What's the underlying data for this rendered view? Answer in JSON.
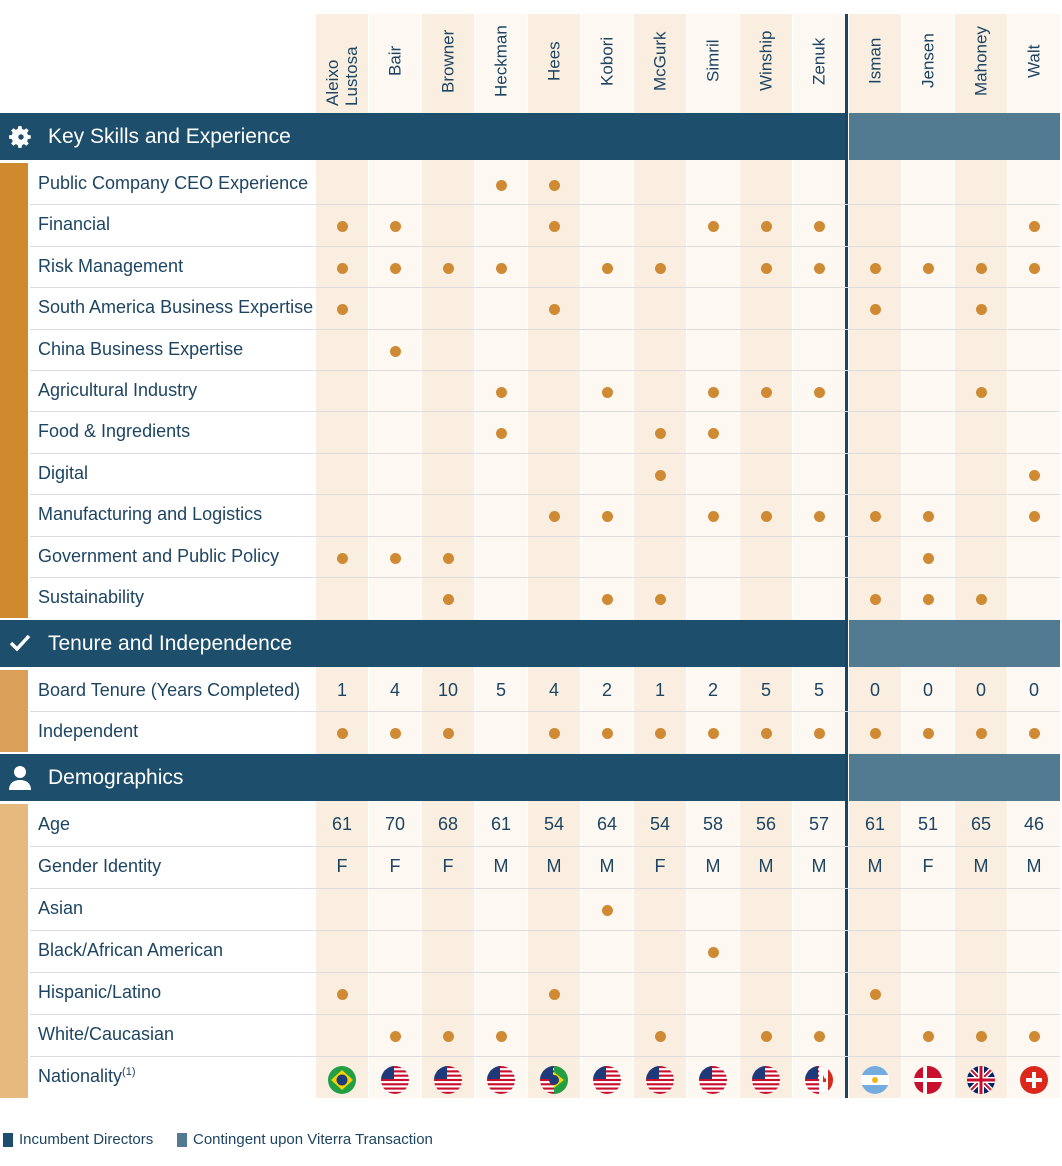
{
  "directors": [
    "Aleixo Lustosa",
    "Bair",
    "Browner",
    "Heckman",
    "Hees",
    "Kobori",
    "McGurk",
    "Simril",
    "Winship",
    "Zenuk",
    "Isman",
    "Jensen",
    "Mahoney",
    "Walt"
  ],
  "sections": [
    {
      "title": "Key Skills and Experience",
      "rows": [
        {
          "label": "Public Company CEO Experience",
          "cells": [
            false,
            false,
            false,
            true,
            true,
            false,
            false,
            false,
            false,
            false,
            false,
            false,
            false,
            false
          ]
        },
        {
          "label": "Financial",
          "cells": [
            true,
            true,
            false,
            false,
            true,
            false,
            false,
            true,
            true,
            true,
            false,
            false,
            false,
            true
          ]
        },
        {
          "label": "Risk Management",
          "cells": [
            true,
            true,
            true,
            true,
            false,
            true,
            true,
            false,
            true,
            true,
            true,
            true,
            true,
            true
          ]
        },
        {
          "label": "South America Business Expertise",
          "cells": [
            true,
            false,
            false,
            false,
            true,
            false,
            false,
            false,
            false,
            false,
            true,
            false,
            true,
            false
          ]
        },
        {
          "label": "China Business Expertise",
          "cells": [
            false,
            true,
            false,
            false,
            false,
            false,
            false,
            false,
            false,
            false,
            false,
            false,
            false,
            false
          ]
        },
        {
          "label": "Agricultural Industry",
          "cells": [
            false,
            false,
            false,
            true,
            false,
            true,
            false,
            true,
            true,
            true,
            false,
            false,
            true,
            false
          ]
        },
        {
          "label": "Food & Ingredients",
          "cells": [
            false,
            false,
            false,
            true,
            false,
            false,
            true,
            true,
            false,
            false,
            false,
            false,
            false,
            false
          ]
        },
        {
          "label": "Digital",
          "cells": [
            false,
            false,
            false,
            false,
            false,
            false,
            true,
            false,
            false,
            false,
            false,
            false,
            false,
            true
          ]
        },
        {
          "label": "Manufacturing and Logistics",
          "cells": [
            false,
            false,
            false,
            false,
            true,
            true,
            false,
            true,
            true,
            true,
            true,
            true,
            false,
            true
          ]
        },
        {
          "label": "Government and Public Policy",
          "cells": [
            true,
            true,
            true,
            false,
            false,
            false,
            false,
            false,
            false,
            false,
            false,
            true,
            false,
            false
          ]
        },
        {
          "label": "Sustainability",
          "cells": [
            false,
            false,
            true,
            false,
            false,
            true,
            true,
            false,
            false,
            false,
            true,
            true,
            true,
            false
          ]
        }
      ]
    },
    {
      "title": "Tenure and Independence",
      "rows": [
        {
          "label": "Board Tenure (Years Completed)",
          "cells": [
            1,
            4,
            10,
            5,
            4,
            2,
            1,
            2,
            5,
            5,
            0,
            0,
            0,
            0
          ]
        },
        {
          "label": "Independent",
          "cells": [
            true,
            true,
            true,
            false,
            true,
            true,
            true,
            true,
            true,
            true,
            true,
            true,
            true,
            true
          ]
        }
      ]
    },
    {
      "title": "Demographics",
      "rows": [
        {
          "label": "Age",
          "cells": [
            61,
            70,
            68,
            61,
            54,
            64,
            54,
            58,
            56,
            57,
            61,
            51,
            65,
            46
          ]
        },
        {
          "label": "Gender Identity",
          "cells": [
            "F",
            "F",
            "F",
            "M",
            "M",
            "M",
            "F",
            "M",
            "M",
            "M",
            "M",
            "F",
            "M",
            "M"
          ]
        },
        {
          "label": "Asian",
          "cells": [
            false,
            false,
            false,
            false,
            false,
            true,
            false,
            false,
            false,
            false,
            false,
            false,
            false,
            false
          ]
        },
        {
          "label": "Black/African American",
          "cells": [
            false,
            false,
            false,
            false,
            false,
            false,
            false,
            true,
            false,
            false,
            false,
            false,
            false,
            false
          ]
        },
        {
          "label": "Hispanic/Latino",
          "cells": [
            true,
            false,
            false,
            false,
            true,
            false,
            false,
            false,
            false,
            false,
            true,
            false,
            false,
            false
          ]
        },
        {
          "label": "White/Caucasian",
          "cells": [
            false,
            true,
            true,
            true,
            false,
            false,
            true,
            false,
            true,
            true,
            false,
            true,
            true,
            true
          ]
        },
        {
          "label": "Nationality",
          "note": "(1)"
        }
      ]
    }
  ],
  "legend": [
    "Incumbent Directors",
    "Contingent upon Viterra Transaction"
  ]
}
